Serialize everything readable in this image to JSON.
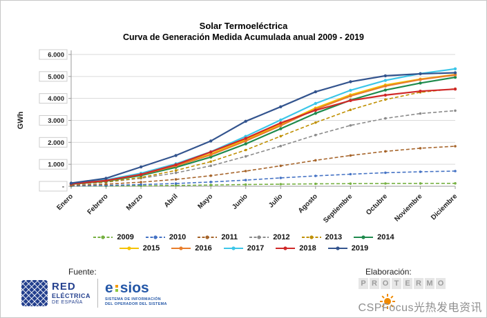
{
  "chart_data": {
    "type": "line",
    "title": "Solar Termoeléctrica — Curva de Generación Medida Acumulada anual 2009 - 2019",
    "title_lines": [
      "Solar Termoeléctrica",
      "Curva de Generación Medida Acumulada anual 2009 - 2019"
    ],
    "xlabel": "",
    "ylabel": "GWh",
    "ylim": [
      0,
      6000
    ],
    "ytick_step": 1000,
    "ytick_labels": [
      "-",
      "1.000",
      "2.000",
      "3.000",
      "4.000",
      "5.000",
      "6.000"
    ],
    "grid": true,
    "legend_position": "bottom",
    "categories": [
      "Enero",
      "Febrero",
      "Marzo",
      "Abril",
      "Mayo",
      "Junio",
      "Julio",
      "Agosto",
      "Septiembre",
      "Octubre",
      "Noviembre",
      "Diciembre"
    ],
    "series": [
      {
        "name": "2009",
        "color": "#76B041",
        "dashed": true,
        "values": [
          5,
          12,
          22,
          38,
          58,
          78,
          95,
          110,
          120,
          126,
          129,
          131
        ]
      },
      {
        "name": "2010",
        "color": "#4472C4",
        "dashed": true,
        "values": [
          15,
          38,
          75,
          125,
          195,
          280,
          380,
          470,
          550,
          615,
          660,
          691
        ]
      },
      {
        "name": "2011",
        "color": "#A6642A",
        "dashed": true,
        "values": [
          40,
          95,
          185,
          310,
          480,
          690,
          930,
          1180,
          1400,
          1590,
          1730,
          1823
        ]
      },
      {
        "name": "2012",
        "color": "#8A8A8A",
        "dashed": true,
        "values": [
          80,
          185,
          365,
          610,
          930,
          1360,
          1830,
          2330,
          2770,
          3090,
          3310,
          3443
        ]
      },
      {
        "name": "2013",
        "color": "#BF8F00",
        "dashed": true,
        "values": [
          85,
          195,
          400,
          720,
          1120,
          1650,
          2280,
          2900,
          3480,
          3950,
          4280,
          4442
        ]
      },
      {
        "name": "2014",
        "color": "#1E8A4C",
        "dashed": false,
        "values": [
          95,
          230,
          490,
          860,
          1330,
          1930,
          2620,
          3320,
          3920,
          4380,
          4700,
          4959
        ]
      },
      {
        "name": "2015",
        "color": "#F5C200",
        "dashed": false,
        "values": [
          110,
          270,
          560,
          960,
          1470,
          2120,
          2820,
          3560,
          4160,
          4610,
          4880,
          5085
        ]
      },
      {
        "name": "2016",
        "color": "#E87D2B",
        "dashed": false,
        "values": [
          100,
          250,
          530,
          930,
          1430,
          2060,
          2760,
          3510,
          4110,
          4560,
          4860,
          5071
        ]
      },
      {
        "name": "2017",
        "color": "#3BC6E8",
        "dashed": false,
        "values": [
          120,
          290,
          590,
          1020,
          1570,
          2270,
          3020,
          3770,
          4370,
          4820,
          5130,
          5348
        ]
      },
      {
        "name": "2018",
        "color": "#D02828",
        "dashed": false,
        "values": [
          110,
          260,
          540,
          980,
          1560,
          2180,
          2880,
          3460,
          3900,
          4150,
          4330,
          4424
        ]
      },
      {
        "name": "2019",
        "color": "#33548E",
        "dashed": false,
        "values": [
          140,
          360,
          880,
          1400,
          2060,
          2960,
          3620,
          4300,
          4760,
          5030,
          5120,
          5166
        ]
      }
    ]
  },
  "footer": {
    "fuente_label": "Fuente:",
    "elaboracion_label": "Elaboración:",
    "ree": {
      "line1": "RED",
      "line2": "ELÉCTRICA",
      "line3": "DE ESPAÑA"
    },
    "esios": {
      "e": "e",
      "rest": "sios",
      "tagline1": "SISTEMA DE INFORMACIÓN",
      "tagline2": "DEL OPERADOR DEL SISTEMA"
    },
    "protermo_letters": "PROTERMO"
  },
  "watermark": "CSPFocus光热发电资讯"
}
